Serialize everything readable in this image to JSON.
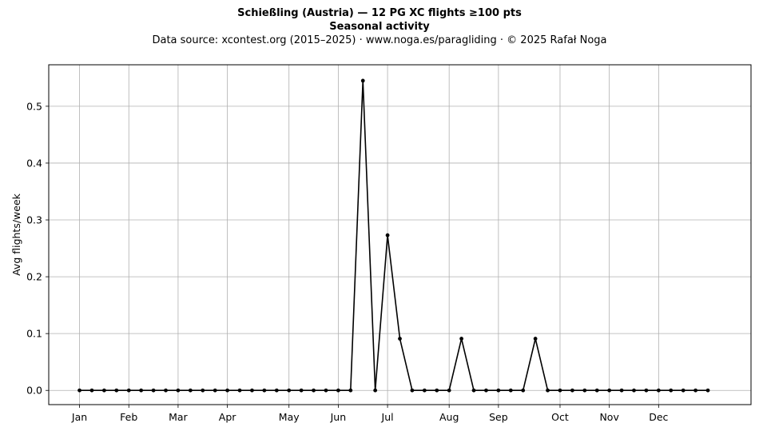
{
  "chart_data": {
    "type": "line",
    "title": "Schießling (Austria)  —  12 PG XC flights ≥100 pts",
    "subtitle": "Seasonal activity",
    "source": "Data source: xcontest.org (2015–2025)  ·  www.noga.es/paragliding  ·  © 2025 Rafał Noga",
    "xlabel": "",
    "ylabel": "Avg flights/week",
    "ylim": [
      -0.025,
      0.573
    ],
    "yticks": [
      0.0,
      0.1,
      0.2,
      0.3,
      0.4,
      0.5
    ],
    "ytick_labels": [
      "0.0",
      "0.1",
      "0.2",
      "0.3",
      "0.4",
      "0.5"
    ],
    "xlim": [
      -2.5,
      54.5
    ],
    "xticks": [
      0,
      4,
      8,
      12,
      17,
      21,
      25,
      30,
      34,
      39,
      43,
      47
    ],
    "xtick_labels": [
      "Jan",
      "Feb",
      "Mar",
      "Apr",
      "May",
      "Jun",
      "Jul",
      "Aug",
      "Sep",
      "Oct",
      "Nov",
      "Dec"
    ],
    "grid": true,
    "line_color": "#000000",
    "grid_color": "#b0b0b0",
    "series": [
      {
        "x": [
          0,
          1,
          2,
          3,
          4,
          5,
          6,
          7,
          8,
          9,
          10,
          11,
          12,
          13,
          14,
          15,
          16,
          17,
          18,
          19,
          20,
          21,
          22,
          23,
          24,
          25,
          26,
          27,
          28,
          29,
          30,
          31,
          32,
          33,
          34,
          35,
          36,
          37,
          38,
          39,
          40,
          41,
          42,
          43,
          44,
          45,
          46,
          47,
          48,
          49,
          50,
          51
        ],
        "values": [
          0,
          0,
          0,
          0,
          0,
          0,
          0,
          0,
          0,
          0,
          0,
          0,
          0,
          0,
          0,
          0,
          0,
          0,
          0,
          0,
          0,
          0,
          0,
          0.545,
          0,
          0.273,
          0.091,
          0,
          0,
          0,
          0,
          0.091,
          0,
          0,
          0,
          0,
          0,
          0.091,
          0,
          0,
          0,
          0,
          0,
          0,
          0,
          0,
          0,
          0,
          0,
          0,
          0,
          0
        ]
      }
    ]
  }
}
